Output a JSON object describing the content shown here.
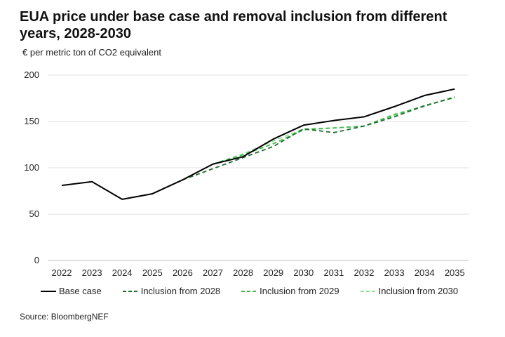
{
  "title": "EUA price under base case and removal inclusion from different years, 2028-2030",
  "unit_label": "€ per metric ton of CO2 equivalent",
  "source": "Source: BloombergNEF",
  "chart_data": {
    "type": "line",
    "title": "EUA price under base case and removal inclusion from different years, 2028-2030",
    "ylabel": "€ per metric ton of CO2 equivalent",
    "xlabel": "",
    "ylim": [
      0,
      200
    ],
    "yticks": [
      "0",
      "50",
      "100",
      "150",
      "200"
    ],
    "categories": [
      "2022",
      "2023",
      "2024",
      "2025",
      "2026",
      "2027",
      "2028",
      "2029",
      "2030",
      "2031",
      "2032",
      "2033",
      "2034",
      "2035"
    ],
    "grid": "horizontal",
    "legend_position": "bottom",
    "series": [
      {
        "name": "Base case",
        "color": "#000000",
        "dash": "solid",
        "values": [
          81,
          85,
          66,
          72,
          87,
          104,
          112,
          131,
          146,
          151,
          155,
          166,
          178,
          185
        ]
      },
      {
        "name": "Inclusion from 2028",
        "color": "#1e6b2e",
        "dash": "dashed",
        "values": [
          null,
          null,
          null,
          null,
          87,
          99,
          111,
          123,
          142,
          138,
          145,
          155,
          167,
          176
        ]
      },
      {
        "name": "Inclusion from 2029",
        "color": "#3dbb4e",
        "dash": "dashed",
        "values": [
          null,
          null,
          null,
          null,
          null,
          104,
          114,
          126,
          141,
          143,
          145,
          157,
          167,
          176
        ]
      },
      {
        "name": "Inclusion from 2030",
        "color": "#8fe08f",
        "dash": "dashed",
        "values": [
          null,
          null,
          null,
          null,
          null,
          104,
          115,
          129,
          142,
          143,
          145,
          158,
          166,
          177
        ]
      }
    ]
  }
}
